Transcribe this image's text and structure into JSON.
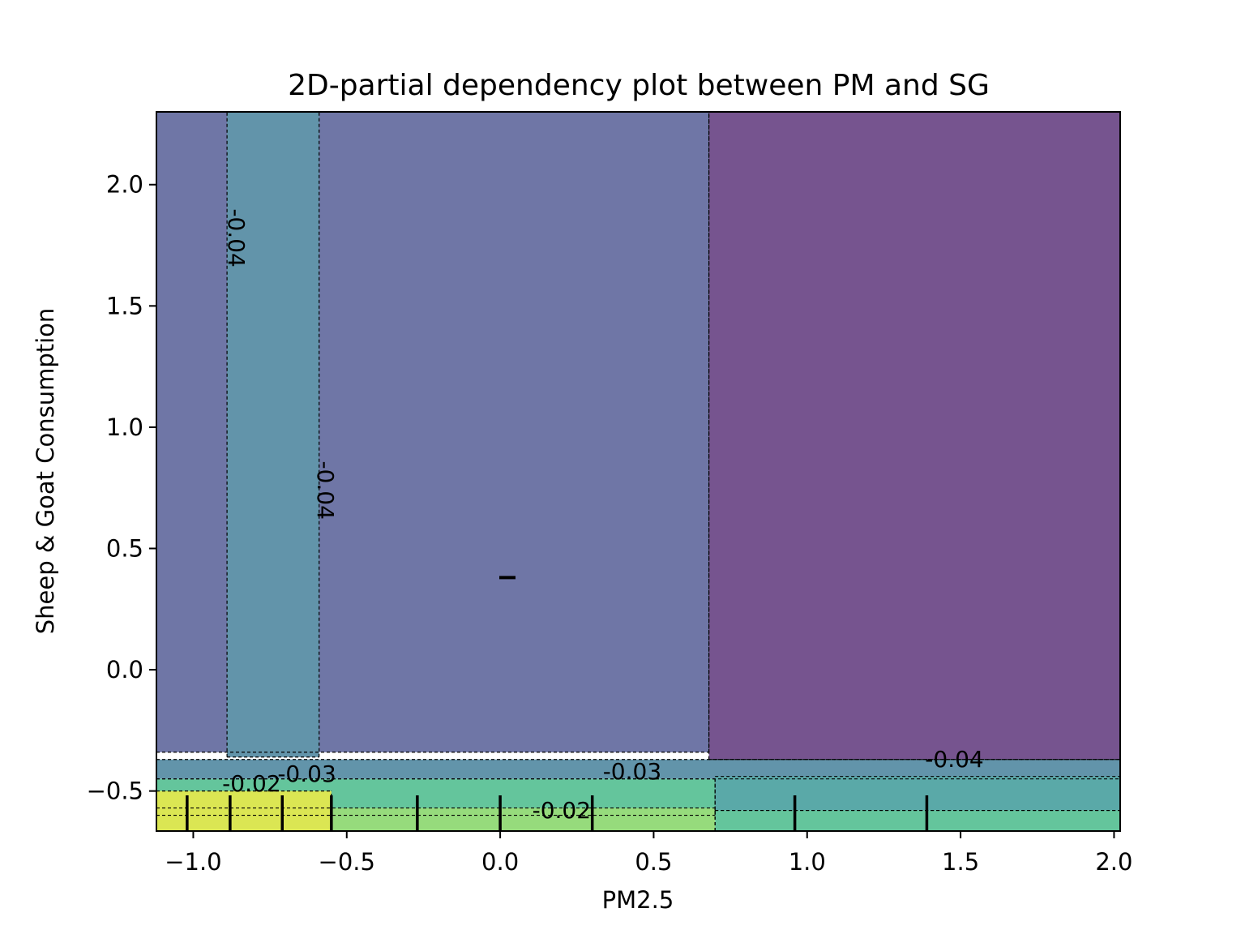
{
  "chart_data": {
    "type": "heatmap",
    "subtype": "filled-contour",
    "title": "2D-partial dependency plot between PM and SG",
    "xlabel": "PM2.5",
    "ylabel": "Sheep & Goat Consumption",
    "xlim": [
      -1.12,
      2.02
    ],
    "ylim": [
      -0.665,
      2.3
    ],
    "xticks": [
      -1.0,
      -0.5,
      0.0,
      0.5,
      1.0,
      1.5,
      2.0
    ],
    "xtick_labels": [
      "−1.0",
      "−0.5",
      "0.0",
      "0.5",
      "1.0",
      "1.5",
      "2.0"
    ],
    "yticks": [
      -0.5,
      0.0,
      0.5,
      1.0,
      1.5,
      2.0
    ],
    "ytick_labels": [
      "−0.5",
      "0.0",
      "0.5",
      "1.0",
      "1.5",
      "2.0"
    ],
    "colormap": "viridis",
    "colors": {
      "darkest": "#76548f",
      "dark": "#6f76a6",
      "mid_dark": "#6294aa",
      "mid": "#5aa9a8",
      "mid_light": "#64c59c",
      "light": "#96db7c",
      "lightest": "#dbe653"
    },
    "regions": [
      {
        "level": "darkest",
        "x": [
          0.68,
          2.02
        ],
        "y": [
          -0.37,
          2.3
        ]
      },
      {
        "level": "dark",
        "x": [
          -1.12,
          0.68
        ],
        "y": [
          -0.34,
          2.3
        ]
      },
      {
        "level": "mid_dark",
        "x": [
          -0.89,
          -0.59
        ],
        "y": [
          -0.36,
          2.3
        ]
      },
      {
        "level": "mid_dark",
        "x": [
          -1.12,
          2.02
        ],
        "y": [
          -0.45,
          -0.37
        ]
      },
      {
        "level": "mid",
        "x": [
          0.7,
          2.02
        ],
        "y": [
          -0.58,
          -0.44
        ]
      },
      {
        "level": "mid_light",
        "x": [
          -1.12,
          0.7
        ],
        "y": [
          -0.6,
          -0.45
        ]
      },
      {
        "level": "mid_light",
        "x": [
          0.7,
          2.02
        ],
        "y": [
          -0.665,
          -0.58
        ]
      },
      {
        "level": "light",
        "x": [
          -1.12,
          0.7
        ],
        "y": [
          -0.665,
          -0.57
        ]
      },
      {
        "level": "lightest",
        "x": [
          -1.12,
          -0.55
        ],
        "y": [
          -0.665,
          -0.5
        ]
      }
    ],
    "contour_lines": [
      {
        "value": -0.04,
        "label": "-0.04",
        "label_at": [
          -0.86,
          1.78
        ],
        "rotation": 90
      },
      {
        "value": -0.04,
        "label": "-0.04",
        "label_at": [
          -0.57,
          0.74
        ],
        "rotation": 90
      },
      {
        "value": -0.04,
        "label": "-0.04",
        "label_at": [
          1.48,
          -0.37
        ],
        "rotation": 0
      },
      {
        "value": -0.03,
        "label": "-0.03",
        "label_at": [
          0.43,
          -0.42
        ],
        "rotation": 0
      },
      {
        "value": -0.03,
        "label": "-0.03",
        "label_at": [
          -0.63,
          -0.43
        ],
        "rotation": 0
      },
      {
        "value": -0.02,
        "label": "-0.02",
        "label_at": [
          -0.81,
          -0.47
        ],
        "rotation": 0
      },
      {
        "value": -0.02,
        "label": "-0.02",
        "label_at": [
          0.2,
          -0.58
        ],
        "rotation": 0
      }
    ],
    "rug_x": [
      -1.02,
      -0.88,
      -0.71,
      -0.55,
      -0.27,
      0.0,
      0.3,
      0.96,
      1.39
    ],
    "rug_y": [
      0.38
    ],
    "grid": false,
    "legend": "none"
  }
}
